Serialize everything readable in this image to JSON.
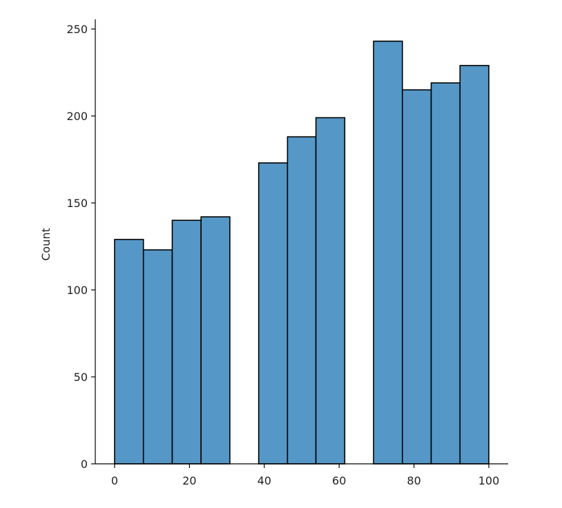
{
  "chart_data": {
    "type": "bar",
    "subtype": "histogram",
    "title": "",
    "xlabel": "",
    "ylabel": "Count",
    "xlim": [
      -5,
      105
    ],
    "ylim": [
      0,
      255
    ],
    "x_ticks": [
      0,
      20,
      40,
      60,
      80,
      100
    ],
    "y_ticks": [
      0,
      50,
      100,
      150,
      200,
      250
    ],
    "grid": false,
    "legend": "none",
    "bar_color": "#5597c6",
    "edge_color": "#000000",
    "bins": [
      {
        "x0": 0.0,
        "x1": 7.7,
        "count": 129
      },
      {
        "x0": 7.7,
        "x1": 15.4,
        "count": 123
      },
      {
        "x0": 15.4,
        "x1": 23.1,
        "count": 140
      },
      {
        "x0": 23.1,
        "x1": 30.8,
        "count": 142
      },
      {
        "x0": 30.8,
        "x1": 38.5,
        "count": 0
      },
      {
        "x0": 38.5,
        "x1": 46.2,
        "count": 173
      },
      {
        "x0": 46.2,
        "x1": 53.8,
        "count": 188
      },
      {
        "x0": 53.8,
        "x1": 61.5,
        "count": 199
      },
      {
        "x0": 61.5,
        "x1": 69.2,
        "count": 0
      },
      {
        "x0": 69.2,
        "x1": 76.9,
        "count": 243
      },
      {
        "x0": 76.9,
        "x1": 84.6,
        "count": 215
      },
      {
        "x0": 84.6,
        "x1": 92.3,
        "count": 219
      },
      {
        "x0": 92.3,
        "x1": 100.0,
        "count": 229
      }
    ]
  }
}
